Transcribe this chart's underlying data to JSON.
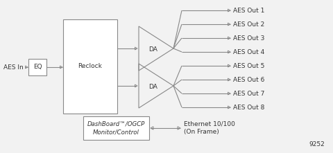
{
  "bg_color": "#f2f2f2",
  "line_color": "#888888",
  "box_color": "#ffffff",
  "text_color": "#333333",
  "figsize": [
    4.8,
    2.21
  ],
  "dpi": 100,
  "aes_in_label": "AES In",
  "eq_label": "EQ",
  "reclock_label": "Reclock",
  "da_label": "DA",
  "aes_outputs": [
    "AES Out 1",
    "AES Out 2",
    "AES Out 3",
    "AES Out 4",
    "AES Out 5",
    "AES Out 6",
    "AES Out 7",
    "AES Out 8"
  ],
  "dashboard_label": "DashBoard™/OGCP\nMonitor/Control",
  "ethernet_label": "Ethernet 10/100\n(On Frame)",
  "model_label": "9252",
  "font_size": 6.5,
  "font_family": "DejaVu Sans"
}
